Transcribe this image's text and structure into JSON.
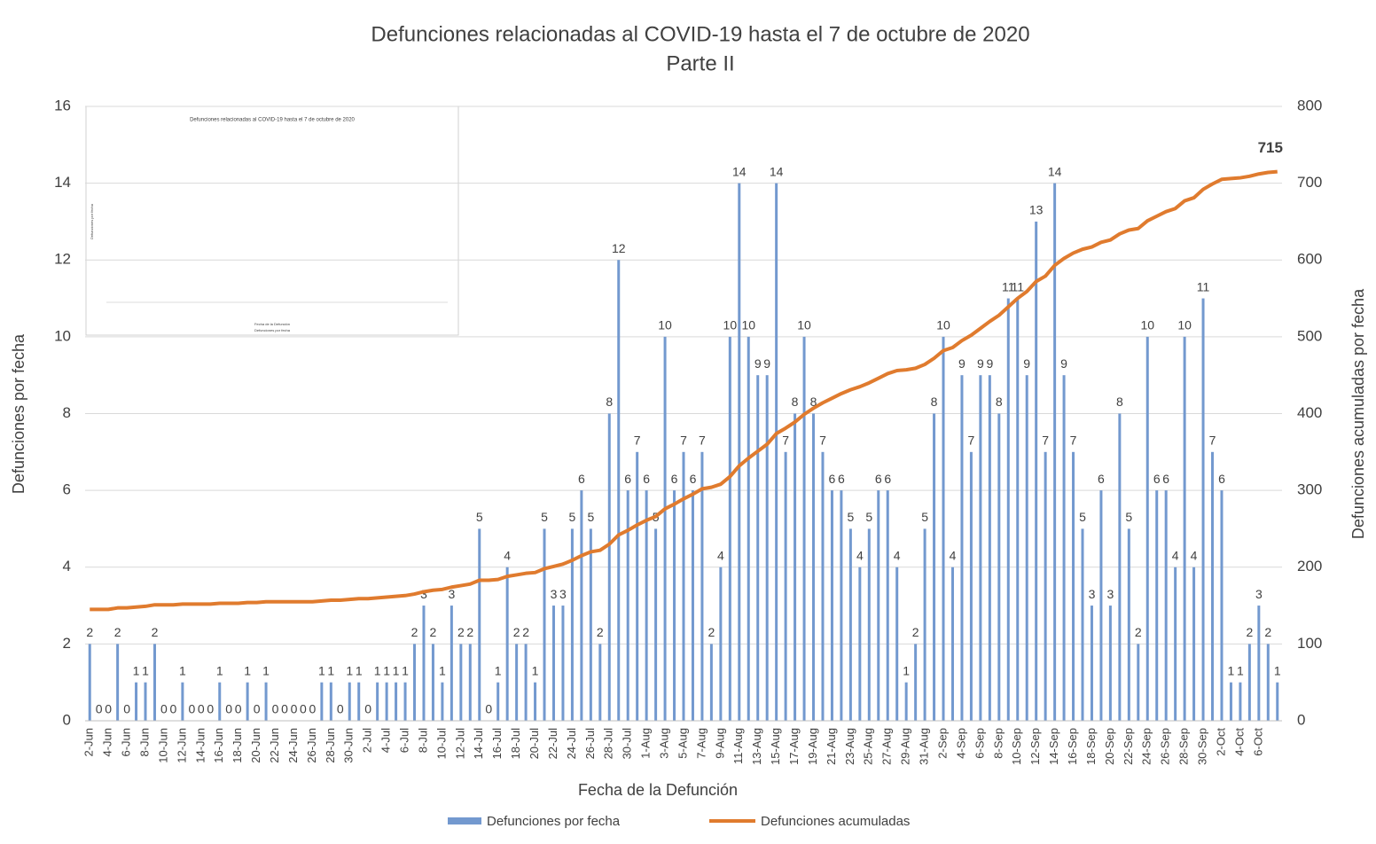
{
  "chart_data": {
    "type": "bar_line",
    "title": "Defunciones relacionadas al COVID-19 hasta el 7 de octubre de 2020",
    "subtitle": "Parte II",
    "x_label": "Fecha de la Defunción",
    "y_label": "Defunciones por fecha",
    "y2_label": "Defunciones acumuladas por fecha",
    "categories": [
      "2-Jun",
      null,
      "4-Jun",
      null,
      "6-Jun",
      null,
      "8-Jun",
      null,
      "10-Jun",
      null,
      "12-Jun",
      null,
      "14-Jun",
      null,
      "16-Jun",
      null,
      "18-Jun",
      null,
      "20-Jun",
      null,
      "22-Jun",
      null,
      "24-Jun",
      null,
      "26-Jun",
      null,
      "28-Jun",
      null,
      "30-Jun",
      null,
      "2-Jul",
      null,
      "4-Jul",
      null,
      "6-Jul",
      null,
      "8-Jul",
      null,
      "10-Jul",
      null,
      "12-Jul",
      null,
      "14-Jul",
      null,
      "16-Jul",
      null,
      "18-Jul",
      null,
      "20-Jul",
      null,
      "22-Jul",
      null,
      "24-Jul",
      null,
      "26-Jul",
      null,
      "28-Jul",
      null,
      "30-Jul",
      null,
      "1-Aug",
      null,
      "3-Aug",
      null,
      "5-Aug",
      null,
      "7-Aug",
      null,
      "9-Aug",
      null,
      "11-Aug",
      null,
      "13-Aug",
      null,
      "15-Aug",
      null,
      "17-Aug",
      null,
      "19-Aug",
      null,
      "21-Aug",
      null,
      "23-Aug",
      null,
      "25-Aug",
      null,
      "27-Aug",
      null,
      "29-Aug",
      null,
      "31-Aug",
      null,
      "2-Sep",
      null,
      "4-Sep",
      null,
      "6-Sep",
      null,
      "8-Sep",
      null,
      "10-Sep",
      null,
      "12-Sep",
      null,
      "14-Sep",
      null,
      "16-Sep",
      null,
      "18-Sep",
      null,
      "20-Sep",
      null,
      "22-Sep",
      null,
      "24-Sep",
      null,
      "26-Sep",
      null,
      "28-Sep",
      null,
      "30-Sep",
      null,
      "2-Oct",
      null,
      "4-Oct",
      null,
      "6-Oct",
      null,
      null
    ],
    "series": [
      {
        "name": "Defunciones por fecha",
        "color": "#7399cf",
        "values": [
          2,
          0,
          0,
          2,
          0,
          1,
          1,
          2,
          0,
          0,
          1,
          0,
          0,
          0,
          1,
          0,
          0,
          1,
          0,
          1,
          0,
          0,
          0,
          0,
          0,
          1,
          1,
          0,
          1,
          1,
          0,
          1,
          1,
          1,
          1,
          2,
          3,
          2,
          1,
          3,
          2,
          2,
          5,
          0,
          1,
          4,
          2,
          2,
          1,
          5,
          3,
          3,
          5,
          6,
          5,
          2,
          8,
          12,
          6,
          7,
          6,
          5,
          10,
          6,
          7,
          6,
          7,
          2,
          4,
          10,
          14,
          10,
          9,
          9,
          14,
          7,
          8,
          10,
          8,
          7,
          6,
          6,
          5,
          4,
          5,
          6,
          6,
          4,
          1,
          2,
          5,
          8,
          10,
          4,
          9,
          7,
          9,
          9,
          8,
          11,
          11,
          9,
          13,
          7,
          14,
          9,
          7,
          5,
          3,
          6,
          3,
          8,
          5,
          2,
          10,
          6,
          6,
          4,
          10,
          4,
          11,
          7,
          6,
          1,
          1,
          2,
          3,
          2,
          1
        ]
      },
      {
        "name": "Defunciones acumuladas",
        "color": "#e07b2e",
        "axis": "y2",
        "values": [
          145,
          145,
          145,
          147,
          147,
          148,
          149,
          151,
          151,
          151,
          152,
          152,
          152,
          152,
          153,
          153,
          153,
          154,
          154,
          155,
          155,
          155,
          155,
          155,
          155,
          156,
          157,
          157,
          158,
          159,
          159,
          160,
          161,
          162,
          163,
          165,
          168,
          170,
          171,
          174,
          176,
          178,
          183,
          183,
          184,
          188,
          190,
          192,
          193,
          198,
          201,
          204,
          209,
          215,
          220,
          222,
          230,
          242,
          248,
          255,
          261,
          266,
          276,
          282,
          289,
          295,
          302,
          304,
          308,
          318,
          332,
          342,
          351,
          360,
          374,
          381,
          389,
          399,
          407,
          414,
          420,
          426,
          431,
          435,
          440,
          446,
          452,
          456,
          457,
          459,
          464,
          472,
          482,
          486,
          495,
          502,
          511,
          520,
          528,
          539,
          550,
          559,
          572,
          579,
          593,
          602,
          609,
          614,
          617,
          623,
          626,
          634,
          639,
          641,
          651,
          657,
          663,
          667,
          677,
          681,
          692,
          699,
          705,
          706,
          707,
          709,
          712,
          714,
          715
        ]
      }
    ],
    "ylim": [
      0,
      16
    ],
    "yticks": [
      0,
      2,
      4,
      6,
      8,
      10,
      12,
      14,
      16
    ],
    "y2lim": [
      0,
      800
    ],
    "y2ticks": [
      0,
      100,
      200,
      300,
      400,
      500,
      600,
      700,
      800
    ],
    "grid": true,
    "legend": "bottom",
    "inset": {
      "title": "Defunciones relacionadas al COVID-19 hasta el 7 de octubre de 2020",
      "y_label": "Defunciones por fecha",
      "x_label": "Fecha de la Defunción",
      "legend": "Defunciones por fecha"
    }
  }
}
